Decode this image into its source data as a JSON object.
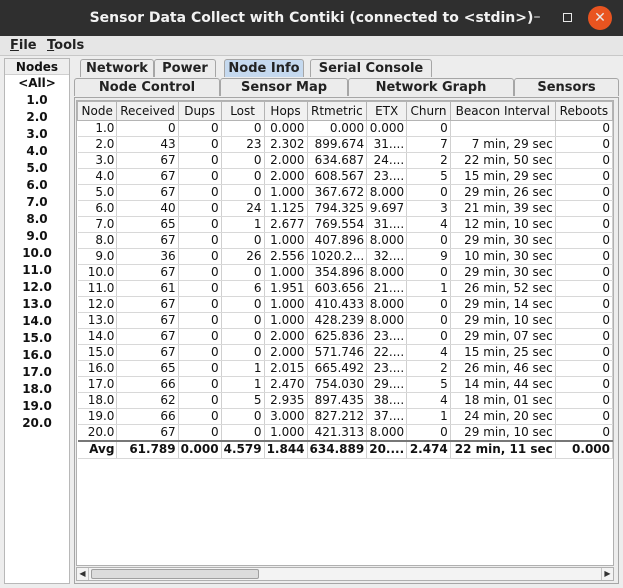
{
  "window": {
    "title": "Sensor Data Collect with Contiki (connected to <stdin>)",
    "min_symbol": "–",
    "close_symbol": "✕"
  },
  "menu": {
    "file_accel": "F",
    "file_rest": "ile",
    "tools_accel": "T",
    "tools_rest": "ools"
  },
  "nodes": {
    "header": "Nodes",
    "items": [
      "<All>",
      "1.0",
      "2.0",
      "3.0",
      "4.0",
      "5.0",
      "6.0",
      "7.0",
      "8.0",
      "9.0",
      "10.0",
      "11.0",
      "12.0",
      "13.0",
      "14.0",
      "15.0",
      "16.0",
      "17.0",
      "18.0",
      "19.0",
      "20.0"
    ]
  },
  "tabs": {
    "row1": [
      "Network",
      "Power",
      "Node Info",
      "Serial Console"
    ],
    "row2": [
      "Node Control",
      "Sensor Map",
      "Network Graph",
      "Sensors"
    ],
    "selected": "Node Info"
  },
  "table": {
    "columns": [
      "Node",
      "Received",
      "Dups",
      "Lost",
      "Hops",
      "Rtmetric",
      "ETX",
      "Churn",
      "Beacon Interval",
      "Reboots"
    ],
    "rows": [
      [
        "1.0",
        "0",
        "0",
        "0",
        "0.000",
        "0.000",
        "0.000",
        "0",
        "",
        "0"
      ],
      [
        "2.0",
        "43",
        "0",
        "23",
        "2.302",
        "899.674",
        "31....",
        "7",
        "7 min, 29 sec",
        "0"
      ],
      [
        "3.0",
        "67",
        "0",
        "0",
        "2.000",
        "634.687",
        "24....",
        "2",
        "22 min, 50 sec",
        "0"
      ],
      [
        "4.0",
        "67",
        "0",
        "0",
        "2.000",
        "608.567",
        "23....",
        "5",
        "15 min, 29 sec",
        "0"
      ],
      [
        "5.0",
        "67",
        "0",
        "0",
        "1.000",
        "367.672",
        "8.000",
        "0",
        "29 min, 26 sec",
        "0"
      ],
      [
        "6.0",
        "40",
        "0",
        "24",
        "1.125",
        "794.325",
        "9.697",
        "3",
        "21 min, 39 sec",
        "0"
      ],
      [
        "7.0",
        "65",
        "0",
        "1",
        "2.677",
        "769.554",
        "31....",
        "4",
        "12 min, 10 sec",
        "0"
      ],
      [
        "8.0",
        "67",
        "0",
        "0",
        "1.000",
        "407.896",
        "8.000",
        "0",
        "29 min, 30 sec",
        "0"
      ],
      [
        "9.0",
        "36",
        "0",
        "26",
        "2.556",
        "1020.2...",
        "32....",
        "9",
        "10 min, 30 sec",
        "0"
      ],
      [
        "10.0",
        "67",
        "0",
        "0",
        "1.000",
        "354.896",
        "8.000",
        "0",
        "29 min, 30 sec",
        "0"
      ],
      [
        "11.0",
        "61",
        "0",
        "6",
        "1.951",
        "603.656",
        "21....",
        "1",
        "26 min, 52 sec",
        "0"
      ],
      [
        "12.0",
        "67",
        "0",
        "0",
        "1.000",
        "410.433",
        "8.000",
        "0",
        "29 min, 14 sec",
        "0"
      ],
      [
        "13.0",
        "67",
        "0",
        "0",
        "1.000",
        "428.239",
        "8.000",
        "0",
        "29 min, 10 sec",
        "0"
      ],
      [
        "14.0",
        "67",
        "0",
        "0",
        "2.000",
        "625.836",
        "23....",
        "0",
        "29 min, 07 sec",
        "0"
      ],
      [
        "15.0",
        "67",
        "0",
        "0",
        "2.000",
        "571.746",
        "22....",
        "4",
        "15 min, 25 sec",
        "0"
      ],
      [
        "16.0",
        "65",
        "0",
        "1",
        "2.015",
        "665.492",
        "23....",
        "2",
        "26 min, 46 sec",
        "0"
      ],
      [
        "17.0",
        "66",
        "0",
        "1",
        "2.470",
        "754.030",
        "29....",
        "5",
        "14 min, 44 sec",
        "0"
      ],
      [
        "18.0",
        "62",
        "0",
        "5",
        "2.935",
        "897.435",
        "38....",
        "4",
        "18 min, 01 sec",
        "0"
      ],
      [
        "19.0",
        "66",
        "0",
        "0",
        "3.000",
        "827.212",
        "37....",
        "1",
        "24 min, 20 sec",
        "0"
      ],
      [
        "20.0",
        "67",
        "0",
        "0",
        "1.000",
        "421.313",
        "8.000",
        "0",
        "29 min, 10 sec",
        "0"
      ]
    ],
    "avg": [
      "Avg",
      "61.789",
      "0.000",
      "4.579",
      "1.844",
      "634.889",
      "20....",
      "2.474",
      "22 min, 11 sec",
      "0.000"
    ]
  },
  "scrollbar": {
    "left_arrow": "◀",
    "right_arrow": "▶"
  }
}
